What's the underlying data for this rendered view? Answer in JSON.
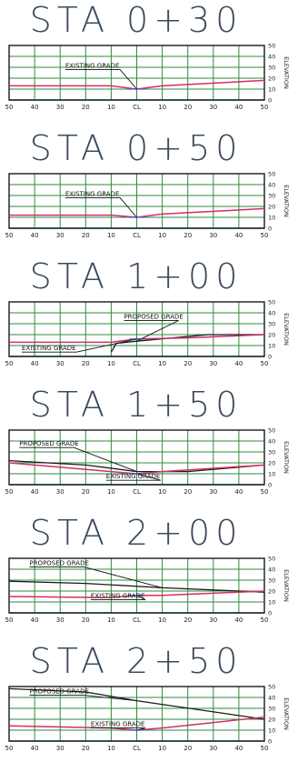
{
  "x_tick_labels": [
    "50",
    "40",
    "30",
    "20",
    "10",
    "CL",
    "10",
    "20",
    "30",
    "40",
    "50"
  ],
  "y_tick_labels": [
    "0",
    "10",
    "20",
    "30",
    "40",
    "50"
  ],
  "y_axis_label": "ELEVATION",
  "colors": {
    "grid": "#2e8b3e",
    "frame": "#1a1a1a",
    "existing": "#d0306a",
    "proposed": "#1a1a1a",
    "ground_blue": "#3c5fd0"
  },
  "sections": [
    {
      "title": "STA 0+30",
      "labels": [
        {
          "text": "EXISTING GRADE",
          "target": "existing"
        }
      ],
      "existing": [
        [
          -50,
          13
        ],
        [
          -10,
          13
        ],
        [
          0,
          10
        ],
        [
          10,
          13
        ],
        [
          50,
          18
        ]
      ],
      "proposed": []
    },
    {
      "title": "STA 0+50",
      "labels": [
        {
          "text": "EXISTING GRADE",
          "target": "existing"
        }
      ],
      "existing": [
        [
          -50,
          12
        ],
        [
          -10,
          12
        ],
        [
          0,
          10
        ],
        [
          10,
          13
        ],
        [
          50,
          18
        ]
      ],
      "proposed": []
    },
    {
      "title": "STA 1+00",
      "labels": [
        {
          "text": "PROPOSED GRADE",
          "target": "proposed"
        },
        {
          "text": "EXISTING GRADE",
          "target": "existing"
        }
      ],
      "existing": [
        [
          -50,
          13
        ],
        [
          -10,
          13
        ],
        [
          0,
          16
        ],
        [
          20,
          17
        ],
        [
          50,
          20
        ]
      ],
      "proposed": [
        [
          -10,
          4
        ],
        [
          -8,
          12
        ],
        [
          0,
          14
        ],
        [
          28,
          20
        ],
        [
          50,
          20
        ]
      ]
    },
    {
      "title": "STA 1+50",
      "labels": [
        {
          "text": "PROPOSED GRADE",
          "target": "proposed"
        },
        {
          "text": "EXISTING GRADE",
          "target": "existing"
        }
      ],
      "existing": [
        [
          -50,
          20
        ],
        [
          -10,
          12
        ],
        [
          0,
          10
        ],
        [
          10,
          12
        ],
        [
          50,
          18
        ]
      ],
      "proposed": [
        [
          -50,
          22
        ],
        [
          -20,
          18
        ],
        [
          0,
          12
        ],
        [
          20,
          12
        ],
        [
          50,
          18
        ]
      ]
    },
    {
      "title": "STA 2+00",
      "labels": [
        {
          "text": "PROPOSED GRADE",
          "target": "proposed"
        },
        {
          "text": "EXISTING GRADE",
          "target": "existing"
        }
      ],
      "existing": [
        [
          -50,
          15
        ],
        [
          -10,
          14
        ],
        [
          0,
          16
        ],
        [
          10,
          16
        ],
        [
          50,
          20
        ]
      ],
      "proposed": [
        [
          -50,
          29
        ],
        [
          -20,
          27
        ],
        [
          10,
          23
        ],
        [
          50,
          19
        ]
      ]
    },
    {
      "title": "STA 2+50",
      "labels": [
        {
          "text": "PROPOSED GRADE",
          "target": "proposed"
        },
        {
          "text": "EXISTING GRADE",
          "target": "existing"
        }
      ],
      "existing": [
        [
          -50,
          14
        ],
        [
          -10,
          12
        ],
        [
          0,
          10
        ],
        [
          10,
          12
        ],
        [
          50,
          22
        ]
      ],
      "proposed": [
        [
          -50,
          48
        ],
        [
          -20,
          45
        ],
        [
          0,
          37
        ],
        [
          50,
          20
        ]
      ]
    }
  ]
}
